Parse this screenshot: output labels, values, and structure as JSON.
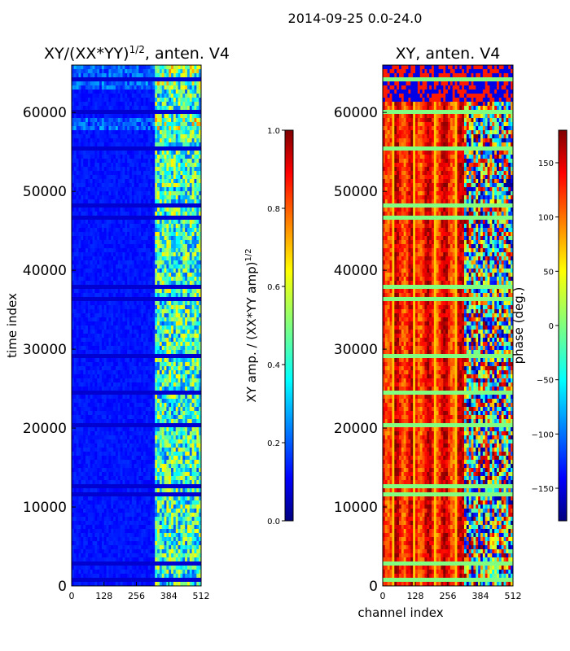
{
  "figure_title": "2014-09-25 0.0-24.0",
  "chart_data": [
    {
      "type": "heatmap",
      "title": "XY/(XX*YY)^1/2, anten. V4",
      "title_main": "XY/(XX*YY)",
      "title_exp": "1/2",
      "title_rest": ", anten. V4",
      "xlabel": "",
      "ylabel": "time index",
      "xlim": [
        0,
        512
      ],
      "ylim": [
        0,
        66000
      ],
      "xticks": [
        0,
        128,
        256,
        384,
        512
      ],
      "yticks": [
        0,
        10000,
        20000,
        30000,
        40000,
        50000,
        60000
      ],
      "colorbar": {
        "label": "XY amp. / (XX*YY amp)^1/2",
        "label_main": "XY amp. / (XX*YY amp)",
        "label_exp": "1/2",
        "range": [
          0.0,
          1.0
        ],
        "ticks": [
          "0.0",
          "0.2",
          "0.4",
          "0.6",
          "0.8",
          "1.0"
        ],
        "colormap": "jet"
      }
    },
    {
      "type": "heatmap",
      "title": "XY, anten. V4",
      "xlabel": "channel index",
      "ylabel": "",
      "xlim": [
        0,
        512
      ],
      "ylim": [
        0,
        66000
      ],
      "xticks": [
        0,
        128,
        256,
        384,
        512
      ],
      "yticks": [
        0,
        10000,
        20000,
        30000,
        40000,
        50000,
        60000
      ],
      "colorbar": {
        "label": "phase (deg.)",
        "range": [
          -180,
          180
        ],
        "ticks": [
          "150",
          "100",
          "50",
          "0",
          "−50",
          "−100",
          "−150"
        ],
        "tick_values": [
          150,
          100,
          50,
          0,
          -50,
          -100,
          -150
        ],
        "colormap": "jet"
      }
    }
  ]
}
